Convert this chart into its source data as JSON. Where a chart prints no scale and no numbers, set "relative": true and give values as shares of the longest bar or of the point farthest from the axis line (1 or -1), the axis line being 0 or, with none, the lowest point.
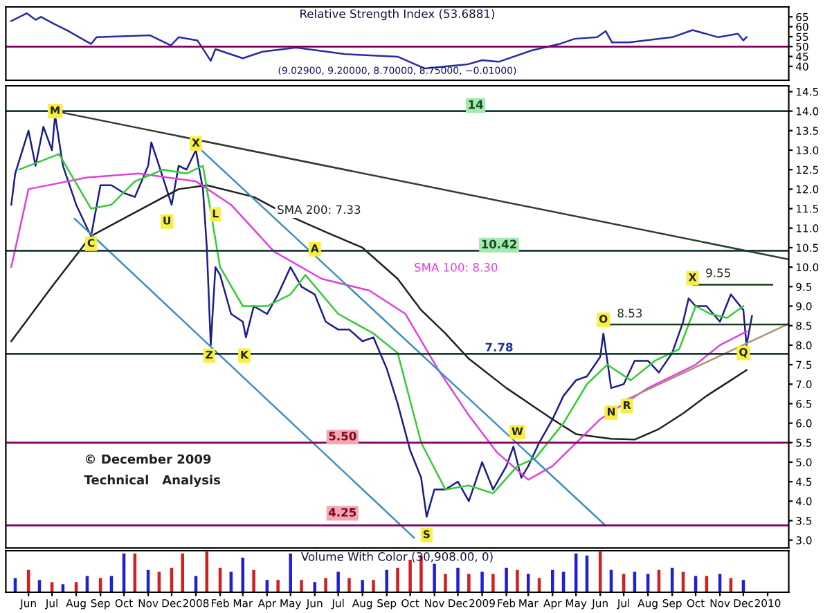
{
  "chart_data": [
    {
      "type": "line",
      "title": "Relative Strength Index (53.6881)",
      "xlim": [
        "2007-05-03",
        "2010-01-28"
      ],
      "ylim": [
        33,
        70
      ],
      "yticks": [
        40,
        45,
        50,
        55,
        60,
        65
      ],
      "tick_labels": "y",
      "annotations": [
        "(9.02900, 9.20000, 8.70000, 8.75000, −0.01000)"
      ],
      "ref_lines": [
        {
          "axis": "y",
          "value": 50,
          "color": "#800060"
        }
      ],
      "series": [
        {
          "color": "#2a2aa0",
          "x": [
            "2007-05-10",
            "2007-05-30",
            "2007-06-10",
            "2007-06-17",
            "2007-07-03",
            "2007-07-22",
            "2007-08-20",
            "2007-08-27",
            "2007-11-03",
            "2007-11-30",
            "2007-12-10",
            "2008-01-03",
            "2008-01-20",
            "2008-01-26",
            "2008-03-01",
            "2008-03-26",
            "2008-05-08",
            "2008-07-10",
            "2008-09-15",
            "2008-10-20",
            "2008-12-13",
            "2009-01-01",
            "2009-01-22",
            "2009-03-05",
            "2009-04-10",
            "2009-04-29",
            "2009-05-28",
            "2009-06-08",
            "2009-06-16",
            "2009-07-08",
            "2009-09-01",
            "2009-09-27",
            "2009-10-30",
            "2009-11-24",
            "2009-12-01",
            "2009-12-05"
          ],
          "values": [
            62.9,
            66.8,
            63.5,
            65,
            61.6,
            57.8,
            51.3,
            54.7,
            55.7,
            50.6,
            54.7,
            53.1,
            42.8,
            48.7,
            44.1,
            47.4,
            49.5,
            46.2,
            44.9,
            38.9,
            41.0,
            43.1,
            42.3,
            48.0,
            51.3,
            53.9,
            54.7,
            57.8,
            52.1,
            52.1,
            54.7,
            58.3,
            54.7,
            56.5,
            53.1,
            54.7
          ]
        }
      ]
    },
    {
      "type": "line",
      "xlim": [
        "2007-05-03",
        "2010-01-28"
      ],
      "ylim": [
        2.8,
        14.65
      ],
      "tick_labels": "y",
      "yticks": [
        {
          "value": 3,
          "label": "3.0"
        },
        {
          "value": 3.5,
          "label": "3.5"
        },
        {
          "value": 4,
          "label": "4.0"
        },
        {
          "value": 4.5,
          "label": "4.5"
        },
        {
          "value": 5,
          "label": "5.0"
        },
        {
          "value": 5.5,
          "label": "5.5"
        },
        {
          "value": 6,
          "label": "6.0"
        },
        {
          "value": 6.5,
          "label": "6.5"
        },
        {
          "value": 7,
          "label": "7.0"
        },
        {
          "value": 7.5,
          "label": "7.5"
        },
        {
          "value": 8,
          "label": "8.0"
        },
        {
          "value": 8.5,
          "label": "8.5"
        },
        {
          "value": 9,
          "label": "9.0"
        },
        {
          "value": 9.5,
          "label": "9.5"
        },
        {
          "value": 10,
          "label": "10.0"
        },
        {
          "value": 10.5,
          "label": "10.5"
        },
        {
          "value": 11,
          "label": "11.0"
        },
        {
          "value": 11.5,
          "label": "11.5"
        },
        {
          "value": 12,
          "label": "12.0"
        },
        {
          "value": 12.5,
          "label": "12.5"
        },
        {
          "value": 13,
          "label": "13.0"
        },
        {
          "value": 13.5,
          "label": "13.5"
        },
        {
          "value": 14,
          "label": "14.0"
        },
        {
          "value": 14.5,
          "label": "14.5"
        }
      ],
      "ref_lines": [
        {
          "axis": "y",
          "value": 14,
          "label": "14",
          "color": "#1a3a3a"
        },
        {
          "axis": "y",
          "value": 10.42,
          "label": "10.42",
          "color": "#1a3a3a"
        },
        {
          "axis": "y",
          "value": 7.78,
          "label": "7.78",
          "color": "#1a3a3a"
        },
        {
          "axis": "y",
          "value": 5.5,
          "label": "5.50",
          "color": "#800060"
        },
        {
          "axis": "y",
          "value": 3.38,
          "color": "#800060"
        }
      ],
      "annotations": [
        {
          "text": "M",
          "x": "2007-07-05",
          "y": 14.0
        },
        {
          "text": "C",
          "x": "2007-08-20",
          "y": 10.6
        },
        {
          "text": "U",
          "x": "2007-11-25",
          "y": 11.17
        },
        {
          "text": "X",
          "x": "2008-01-01",
          "y": 13.17
        },
        {
          "text": "L",
          "x": "2008-01-26",
          "y": 11.35
        },
        {
          "text": "Z",
          "x": "2008-01-18",
          "y": 7.73
        },
        {
          "text": "K",
          "x": "2008-03-03",
          "y": 7.73
        },
        {
          "text": "A",
          "x": "2008-06-01",
          "y": 10.46
        },
        {
          "text": "S",
          "x": "2008-10-22",
          "y": 3.13
        },
        {
          "text": "W",
          "x": "2009-02-15",
          "y": 5.77
        },
        {
          "text": "O",
          "x": "2009-06-05",
          "y": 8.65
        },
        {
          "text": "N",
          "x": "2009-06-15",
          "y": 6.27
        },
        {
          "text": "R",
          "x": "2009-07-05",
          "y": 6.44
        },
        {
          "text": "X",
          "x": "2009-09-27",
          "y": 9.72
        },
        {
          "text": "Q",
          "x": "2009-12-01",
          "y": 7.8
        },
        "SMA 200: 7.33",
        "SMA 100: 8.30",
        "8.53",
        "9.55",
        "© December 2009",
        "Technical   Analysis",
        "4.25"
      ],
      "series": [
        {
          "color": "#1c1c8c",
          "x": [
            "2007-05-10",
            "2007-05-15",
            "2007-06-01",
            "2007-06-10",
            "2007-06-20",
            "2007-07-01",
            "2007-07-05",
            "2007-07-15",
            "2007-08-01",
            "2007-08-15",
            "2007-08-20",
            "2007-09-01",
            "2007-09-15",
            "2007-10-01",
            "2007-10-15",
            "2007-11-01",
            "2007-11-05",
            "2007-11-15",
            "2007-12-01",
            "2007-12-10",
            "2007-12-20",
            "2008-01-01",
            "2008-01-10",
            "2008-01-15",
            "2008-01-20",
            "2008-01-26",
            "2008-02-01",
            "2008-02-15",
            "2008-03-01",
            "2008-03-05",
            "2008-03-15",
            "2008-04-01",
            "2008-04-15",
            "2008-05-01",
            "2008-05-15",
            "2008-06-01",
            "2008-06-15",
            "2008-07-01",
            "2008-07-15",
            "2008-08-01",
            "2008-08-15",
            "2008-09-01",
            "2008-09-15",
            "2008-10-01",
            "2008-10-15",
            "2008-10-22",
            "2008-11-01",
            "2008-11-15",
            "2008-12-01",
            "2008-12-15",
            "2009-01-01",
            "2009-01-15",
            "2009-02-01",
            "2009-02-10",
            "2009-02-20",
            "2009-03-01",
            "2009-03-15",
            "2009-04-01",
            "2009-04-15",
            "2009-05-01",
            "2009-05-15",
            "2009-06-01",
            "2009-06-05",
            "2009-06-15",
            "2009-07-01",
            "2009-07-15",
            "2009-08-01",
            "2009-08-15",
            "2009-09-01",
            "2009-09-15",
            "2009-09-22",
            "2009-10-01",
            "2009-10-15",
            "2009-11-01",
            "2009-11-15",
            "2009-12-01",
            "2009-12-05",
            "2009-12-12"
          ],
          "values": [
            11.6,
            12.4,
            13.5,
            12.6,
            13.6,
            13.0,
            13.9,
            12.6,
            11.6,
            11.0,
            10.8,
            12.1,
            12.1,
            11.9,
            11.8,
            12.6,
            13.2,
            12.6,
            11.6,
            12.6,
            12.5,
            13.0,
            12.0,
            10.5,
            8.0,
            10.0,
            9.8,
            8.8,
            8.6,
            8.2,
            9.0,
            8.8,
            9.3,
            10.0,
            9.5,
            9.3,
            8.6,
            8.4,
            8.4,
            8.1,
            8.2,
            7.4,
            6.5,
            5.3,
            4.6,
            3.6,
            4.3,
            4.3,
            4.5,
            4.0,
            5.0,
            4.3,
            4.9,
            5.4,
            4.6,
            4.9,
            5.5,
            6.1,
            6.7,
            7.1,
            7.2,
            7.7,
            8.3,
            6.9,
            7.0,
            7.6,
            7.6,
            7.3,
            7.8,
            8.6,
            9.2,
            9.0,
            9.0,
            8.6,
            9.3,
            8.9,
            8.0,
            8.75
          ]
        },
        {
          "color": "#202020",
          "x": [
            "2007-05-10",
            "2007-07-01",
            "2007-08-20",
            "2007-10-15",
            "2007-12-10",
            "2008-01-15",
            "2008-03-15",
            "2008-05-01",
            "2008-06-15",
            "2008-08-01",
            "2008-09-15",
            "2008-10-15",
            "2008-11-15",
            "2008-12-15",
            "2009-02-01",
            "2009-04-01",
            "2009-05-01",
            "2009-06-15",
            "2009-07-15",
            "2009-08-15",
            "2009-09-15",
            "2009-10-15",
            "2009-11-15",
            "2009-12-05"
          ],
          "values": [
            8.1,
            9.5,
            10.8,
            11.4,
            12.0,
            12.1,
            11.8,
            11.3,
            10.9,
            10.5,
            9.7,
            8.9,
            8.3,
            7.65,
            6.9,
            6.1,
            5.72,
            5.6,
            5.58,
            5.85,
            6.25,
            6.7,
            7.1,
            7.36
          ]
        },
        {
          "color": "#e040e0",
          "x": [
            "2007-05-10",
            "2007-06-01",
            "2007-08-15",
            "2007-10-20",
            "2008-01-01",
            "2008-02-15",
            "2008-04-10",
            "2008-06-10",
            "2008-08-10",
            "2008-09-25",
            "2008-11-05",
            "2008-12-15",
            "2009-01-20",
            "2009-03-01",
            "2009-04-01",
            "2009-06-01",
            "2009-08-01",
            "2009-10-01",
            "2009-11-01",
            "2009-12-05"
          ],
          "values": [
            10.0,
            12.0,
            12.3,
            12.4,
            12.2,
            11.6,
            10.4,
            9.7,
            9.4,
            8.8,
            7.4,
            6.2,
            5.25,
            4.55,
            4.9,
            6.1,
            6.9,
            7.5,
            8.0,
            8.35
          ]
        },
        {
          "color": "#33cc33",
          "x": [
            "2007-05-20",
            "2007-07-10",
            "2007-08-20",
            "2007-09-15",
            "2007-10-15",
            "2007-11-20",
            "2007-12-20",
            "2008-01-10",
            "2008-02-01",
            "2008-03-01",
            "2008-04-01",
            "2008-05-01",
            "2008-05-20",
            "2008-07-01",
            "2008-08-15",
            "2008-09-15",
            "2008-10-15",
            "2008-11-15",
            "2008-12-15",
            "2009-01-15",
            "2009-02-15",
            "2009-03-10",
            "2009-04-15",
            "2009-05-15",
            "2009-06-10",
            "2009-07-10",
            "2009-08-10",
            "2009-09-10",
            "2009-10-01",
            "2009-10-20",
            "2009-11-10",
            "2009-12-01"
          ],
          "values": [
            12.5,
            12.9,
            11.5,
            11.6,
            12.2,
            12.5,
            12.4,
            12.6,
            10.0,
            9.0,
            9.0,
            9.3,
            9.8,
            8.8,
            8.3,
            7.8,
            5.5,
            4.3,
            4.4,
            4.2,
            4.9,
            5.1,
            6.0,
            7.0,
            7.5,
            7.1,
            7.6,
            7.9,
            9.0,
            8.8,
            8.7,
            9.0
          ]
        },
        {
          "color": "#2e3e2e",
          "x": [
            "2007-07-05",
            "2010-01-28"
          ],
          "values": [
            14.0,
            10.2
          ]
        },
        {
          "color": "#3a8fc0",
          "x": [
            "2008-01-01",
            "2009-06-08"
          ],
          "values": [
            13.13,
            3.37
          ]
        },
        {
          "color": "#3a8fc0",
          "x": [
            "2007-07-30",
            "2008-10-06"
          ],
          "values": [
            11.24,
            3.06
          ]
        },
        {
          "color": "#b09070",
          "x": [
            "2009-07-04",
            "2010-01-28"
          ],
          "values": [
            6.6,
            8.55
          ]
        },
        {
          "color": "#1a3a1a",
          "x": [
            "2009-06-05",
            "2010-01-28"
          ],
          "values": [
            8.53,
            8.53
          ]
        },
        {
          "color": "#1a3a1a",
          "x": [
            "2009-09-28",
            "2010-01-07"
          ],
          "values": [
            9.55,
            9.55
          ]
        }
      ]
    },
    {
      "type": "bar",
      "relative": true,
      "title": "Volume With Color (30,908.00, 0)",
      "xlim": [
        "2007-05-03",
        "2010-01-28"
      ],
      "tick_labels": "x",
      "xticks": [
        {
          "value": "2007-06-01",
          "label": "Jun"
        },
        {
          "value": "2007-07-01",
          "label": "Jul"
        },
        {
          "value": "2007-08-01",
          "label": "Aug"
        },
        {
          "value": "2007-09-01",
          "label": "Sep"
        },
        {
          "value": "2007-10-01",
          "label": "Oct"
        },
        {
          "value": "2007-11-01",
          "label": "Nov"
        },
        {
          "value": "2007-12-01",
          "label": "Dec"
        },
        {
          "value": "2008-01-01",
          "label": "2008"
        },
        {
          "value": "2008-02-01",
          "label": "Feb"
        },
        {
          "value": "2008-03-01",
          "label": "Mar"
        },
        {
          "value": "2008-04-01",
          "label": "Apr"
        },
        {
          "value": "2008-05-01",
          "label": "May"
        },
        {
          "value": "2008-06-01",
          "label": "Jun"
        },
        {
          "value": "2008-07-01",
          "label": "Jul"
        },
        {
          "value": "2008-08-01",
          "label": "Aug"
        },
        {
          "value": "2008-09-01",
          "label": "Sep"
        },
        {
          "value": "2008-10-01",
          "label": "Oct"
        },
        {
          "value": "2008-11-01",
          "label": "Nov"
        },
        {
          "value": "2008-12-01",
          "label": "Dec"
        },
        {
          "value": "2009-01-01",
          "label": "2009"
        },
        {
          "value": "2009-02-01",
          "label": "Feb"
        },
        {
          "value": "2009-03-01",
          "label": "Mar"
        },
        {
          "value": "2009-04-01",
          "label": "Apr"
        },
        {
          "value": "2009-05-01",
          "label": "May"
        },
        {
          "value": "2009-06-01",
          "label": "Jun"
        },
        {
          "value": "2009-07-01",
          "label": "Jul"
        },
        {
          "value": "2009-08-01",
          "label": "Aug"
        },
        {
          "value": "2009-09-01",
          "label": "Sep"
        },
        {
          "value": "2009-10-01",
          "label": "Oct"
        },
        {
          "value": "2009-11-01",
          "label": "Nov"
        },
        {
          "value": "2009-12-01",
          "label": "Dec"
        },
        {
          "value": "2010-01-01",
          "label": "2010"
        }
      ],
      "series": [
        {
          "x": [
            "2007-05-15",
            "2007-06-01",
            "2007-06-15",
            "2007-07-01",
            "2007-07-15",
            "2007-08-01",
            "2007-08-15",
            "2007-09-01",
            "2007-09-15",
            "2007-10-01",
            "2007-10-15",
            "2007-11-01",
            "2007-11-15",
            "2007-12-01",
            "2007-12-15",
            "2008-01-01",
            "2008-01-15",
            "2008-02-01",
            "2008-02-15",
            "2008-03-01",
            "2008-03-15",
            "2008-04-01",
            "2008-04-15",
            "2008-05-01",
            "2008-05-15",
            "2008-06-01",
            "2008-06-15",
            "2008-07-01",
            "2008-07-15",
            "2008-08-01",
            "2008-08-15",
            "2008-09-01",
            "2008-09-15",
            "2008-10-01",
            "2008-10-15",
            "2008-11-01",
            "2008-11-15",
            "2008-12-01",
            "2008-12-15",
            "2009-01-01",
            "2009-01-15",
            "2009-02-01",
            "2009-02-15",
            "2009-03-01",
            "2009-03-15",
            "2009-04-01",
            "2009-04-15",
            "2009-05-01",
            "2009-05-15",
            "2009-06-01",
            "2009-06-15",
            "2009-07-01",
            "2009-07-15",
            "2009-08-01",
            "2009-08-15",
            "2009-09-01",
            "2009-09-15",
            "2009-10-01",
            "2009-10-15",
            "2009-11-01",
            "2009-11-15",
            "2009-12-01"
          ],
          "values": [
            0.35,
            0.55,
            0.3,
            0.25,
            0.2,
            0.25,
            0.4,
            0.35,
            0.4,
            0.95,
            0.95,
            0.55,
            0.5,
            0.6,
            0.95,
            0.4,
            1.0,
            0.6,
            0.5,
            0.85,
            0.55,
            0.3,
            0.3,
            0.95,
            0.3,
            0.25,
            0.35,
            0.5,
            0.35,
            0.3,
            0.3,
            0.55,
            0.6,
            0.8,
            0.9,
            0.7,
            0.45,
            0.6,
            0.45,
            0.5,
            0.45,
            0.6,
            0.55,
            0.45,
            0.35,
            0.55,
            0.5,
            0.95,
            0.9,
            1.0,
            0.55,
            0.45,
            0.5,
            0.45,
            0.55,
            0.6,
            0.5,
            0.4,
            0.4,
            0.45,
            0.35,
            0.3
          ],
          "colors": [
            "#2020d0",
            "#d02020",
            "#2020d0",
            "#d02020",
            "#2020d0",
            "#d02020",
            "#2020d0",
            "#d02020",
            "#2020d0",
            "#2020d0",
            "#d02020",
            "#2020d0",
            "#d02020",
            "#d02020",
            "#d02020",
            "#2020d0",
            "#d02020",
            "#d02020",
            "#2020d0",
            "#2020d0",
            "#d02020",
            "#2020d0",
            "#d02020",
            "#2020d0",
            "#d02020",
            "#2020d0",
            "#d02020",
            "#2020d0",
            "#d02020",
            "#2020d0",
            "#d02020",
            "#2020d0",
            "#d02020",
            "#d02020",
            "#d02020",
            "#2020d0",
            "#d02020",
            "#2020d0",
            "#d02020",
            "#2020d0",
            "#d02020",
            "#2020d0",
            "#d02020",
            "#2020d0",
            "#d02020",
            "#2020d0",
            "#2020d0",
            "#2020d0",
            "#2020d0",
            "#d02020",
            "#2020d0",
            "#d02020",
            "#2020d0",
            "#2020d0",
            "#d02020",
            "#2020d0",
            "#d02020",
            "#2020d0",
            "#d02020",
            "#2020d0",
            "#d02020",
            "#2020d0"
          ]
        }
      ]
    }
  ]
}
